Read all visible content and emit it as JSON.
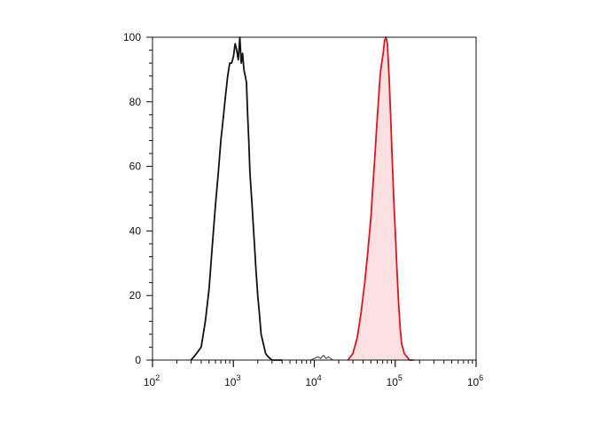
{
  "chart_data": {
    "type": "area",
    "title": "",
    "xlabel": "",
    "ylabel": "",
    "x_scale": "log",
    "xlim": [
      100,
      1000000
    ],
    "ylim": [
      0,
      100
    ],
    "x_ticks": [
      {
        "value": 100,
        "base": "10",
        "exp": "2"
      },
      {
        "value": 1000,
        "base": "10",
        "exp": "3"
      },
      {
        "value": 10000,
        "base": "10",
        "exp": "4"
      },
      {
        "value": 100000,
        "base": "10",
        "exp": "5"
      },
      {
        "value": 1000000,
        "base": "10",
        "exp": "6"
      }
    ],
    "y_ticks": [
      0,
      20,
      40,
      60,
      80,
      100
    ],
    "grid": false,
    "legend": "none",
    "series": [
      {
        "color": "#111111",
        "fill": "none",
        "x": [
          300,
          350,
          400,
          450,
          500,
          550,
          600,
          650,
          700,
          750,
          800,
          850,
          900,
          950,
          1000,
          1050,
          1100,
          1150,
          1200,
          1250,
          1300,
          1350,
          1400,
          1450,
          1500,
          1550,
          1600,
          1700,
          1800,
          1900,
          2000,
          2100,
          2200,
          2350,
          2500,
          2700,
          3000,
          3500,
          4000
        ],
        "y": [
          0,
          2,
          4,
          12,
          22,
          36,
          48,
          58,
          68,
          75,
          82,
          88,
          92,
          92,
          94,
          98,
          96,
          93,
          100,
          92,
          95,
          90,
          88,
          86,
          76,
          68,
          58,
          48,
          38,
          28,
          20,
          14,
          8,
          5,
          2,
          1,
          0,
          0,
          0
        ]
      },
      {
        "color": "#555555",
        "fill": "none",
        "x": [
          9000,
          10000,
          11000,
          12000,
          13000,
          14000,
          15000,
          16000,
          17000
        ],
        "y": [
          0,
          0.5,
          1,
          0.5,
          1.5,
          0.5,
          1,
          0.5,
          0
        ]
      },
      {
        "color": "#e0141e",
        "fill": "#fbe0e2",
        "x": [
          26000,
          30000,
          34000,
          38000,
          42000,
          46000,
          50000,
          53000,
          56000,
          59000,
          62000,
          65000,
          68000,
          71000,
          74000,
          77000,
          80000,
          84000,
          88000,
          92000,
          96000,
          100000,
          105000,
          110000,
          115000,
          120000,
          130000,
          140000,
          150000,
          170000
        ],
        "y": [
          0,
          2,
          7,
          15,
          24,
          34,
          44,
          54,
          63,
          72,
          80,
          88,
          92,
          95,
          99,
          100,
          98,
          88,
          75,
          62,
          50,
          40,
          28,
          18,
          10,
          5,
          2,
          1,
          0,
          0
        ]
      }
    ]
  }
}
